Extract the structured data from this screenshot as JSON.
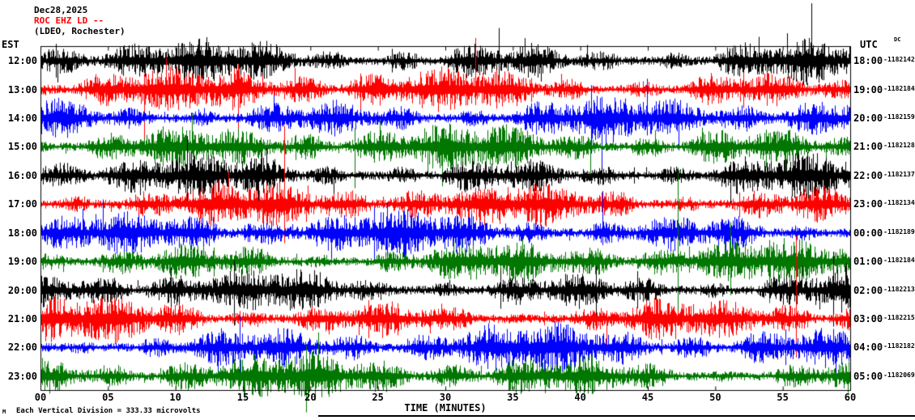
{
  "header": {
    "date": "Dec28,2025",
    "station": "ROC EHZ LD --",
    "location": "(LDEO, Rochester)"
  },
  "axes": {
    "left_label": "EST",
    "right_label": "UTC",
    "dc_label": "DC",
    "x_label": "TIME (MINUTES)"
  },
  "footer": {
    "glyph": "M",
    "note": "Each Vertical Division =  333.33 microvolts"
  },
  "chart_data": {
    "type": "line",
    "subtype": "helicorder-seismogram",
    "title": "ROC EHZ LD -- (LDEO, Rochester) Dec28,2025",
    "x_axis": {
      "label": "TIME (MINUTES)",
      "range_minutes": [
        0,
        60
      ],
      "ticks": [
        "00",
        "05",
        "10",
        "15",
        "20",
        "25",
        "30",
        "35",
        "40",
        "45",
        "50",
        "55",
        "60"
      ]
    },
    "vertical_division_microvolts": 333.33,
    "trace_palette": [
      "#000000",
      "#ff0000",
      "#0000ff",
      "#007700"
    ],
    "rows": [
      {
        "est": "12:00",
        "utc": "18:00",
        "offset": "-1182142",
        "color": "#000000"
      },
      {
        "est": "13:00",
        "utc": "19:00",
        "offset": "-1182184",
        "color": "#ff0000"
      },
      {
        "est": "14:00",
        "utc": "20:00",
        "offset": "-1182159",
        "color": "#0000ff"
      },
      {
        "est": "15:00",
        "utc": "21:00",
        "offset": "-1182128",
        "color": "#007700"
      },
      {
        "est": "16:00",
        "utc": "22:00",
        "offset": "-1182137",
        "color": "#000000"
      },
      {
        "est": "17:00",
        "utc": "23:00",
        "offset": "-1182134",
        "color": "#ff0000"
      },
      {
        "est": "18:00",
        "utc": "00:00",
        "offset": "-1182189",
        "color": "#0000ff"
      },
      {
        "est": "19:00",
        "utc": "01:00",
        "offset": "-1182184",
        "color": "#007700"
      },
      {
        "est": "20:00",
        "utc": "02:00",
        "offset": "-1182213",
        "color": "#000000"
      },
      {
        "est": "21:00",
        "utc": "03:00",
        "offset": "-1182215",
        "color": "#ff0000"
      },
      {
        "est": "22:00",
        "utc": "04:00",
        "offset": "-1182182",
        "color": "#0000ff"
      },
      {
        "est": "23:00",
        "utc": "05:00",
        "offset": "-1182069",
        "color": "#007700"
      }
    ],
    "waveform_note": "Continuous high-amplitude broadband noise on all 12 hourly traces; rendered procedurally (original sample values not recoverable from image)."
  }
}
